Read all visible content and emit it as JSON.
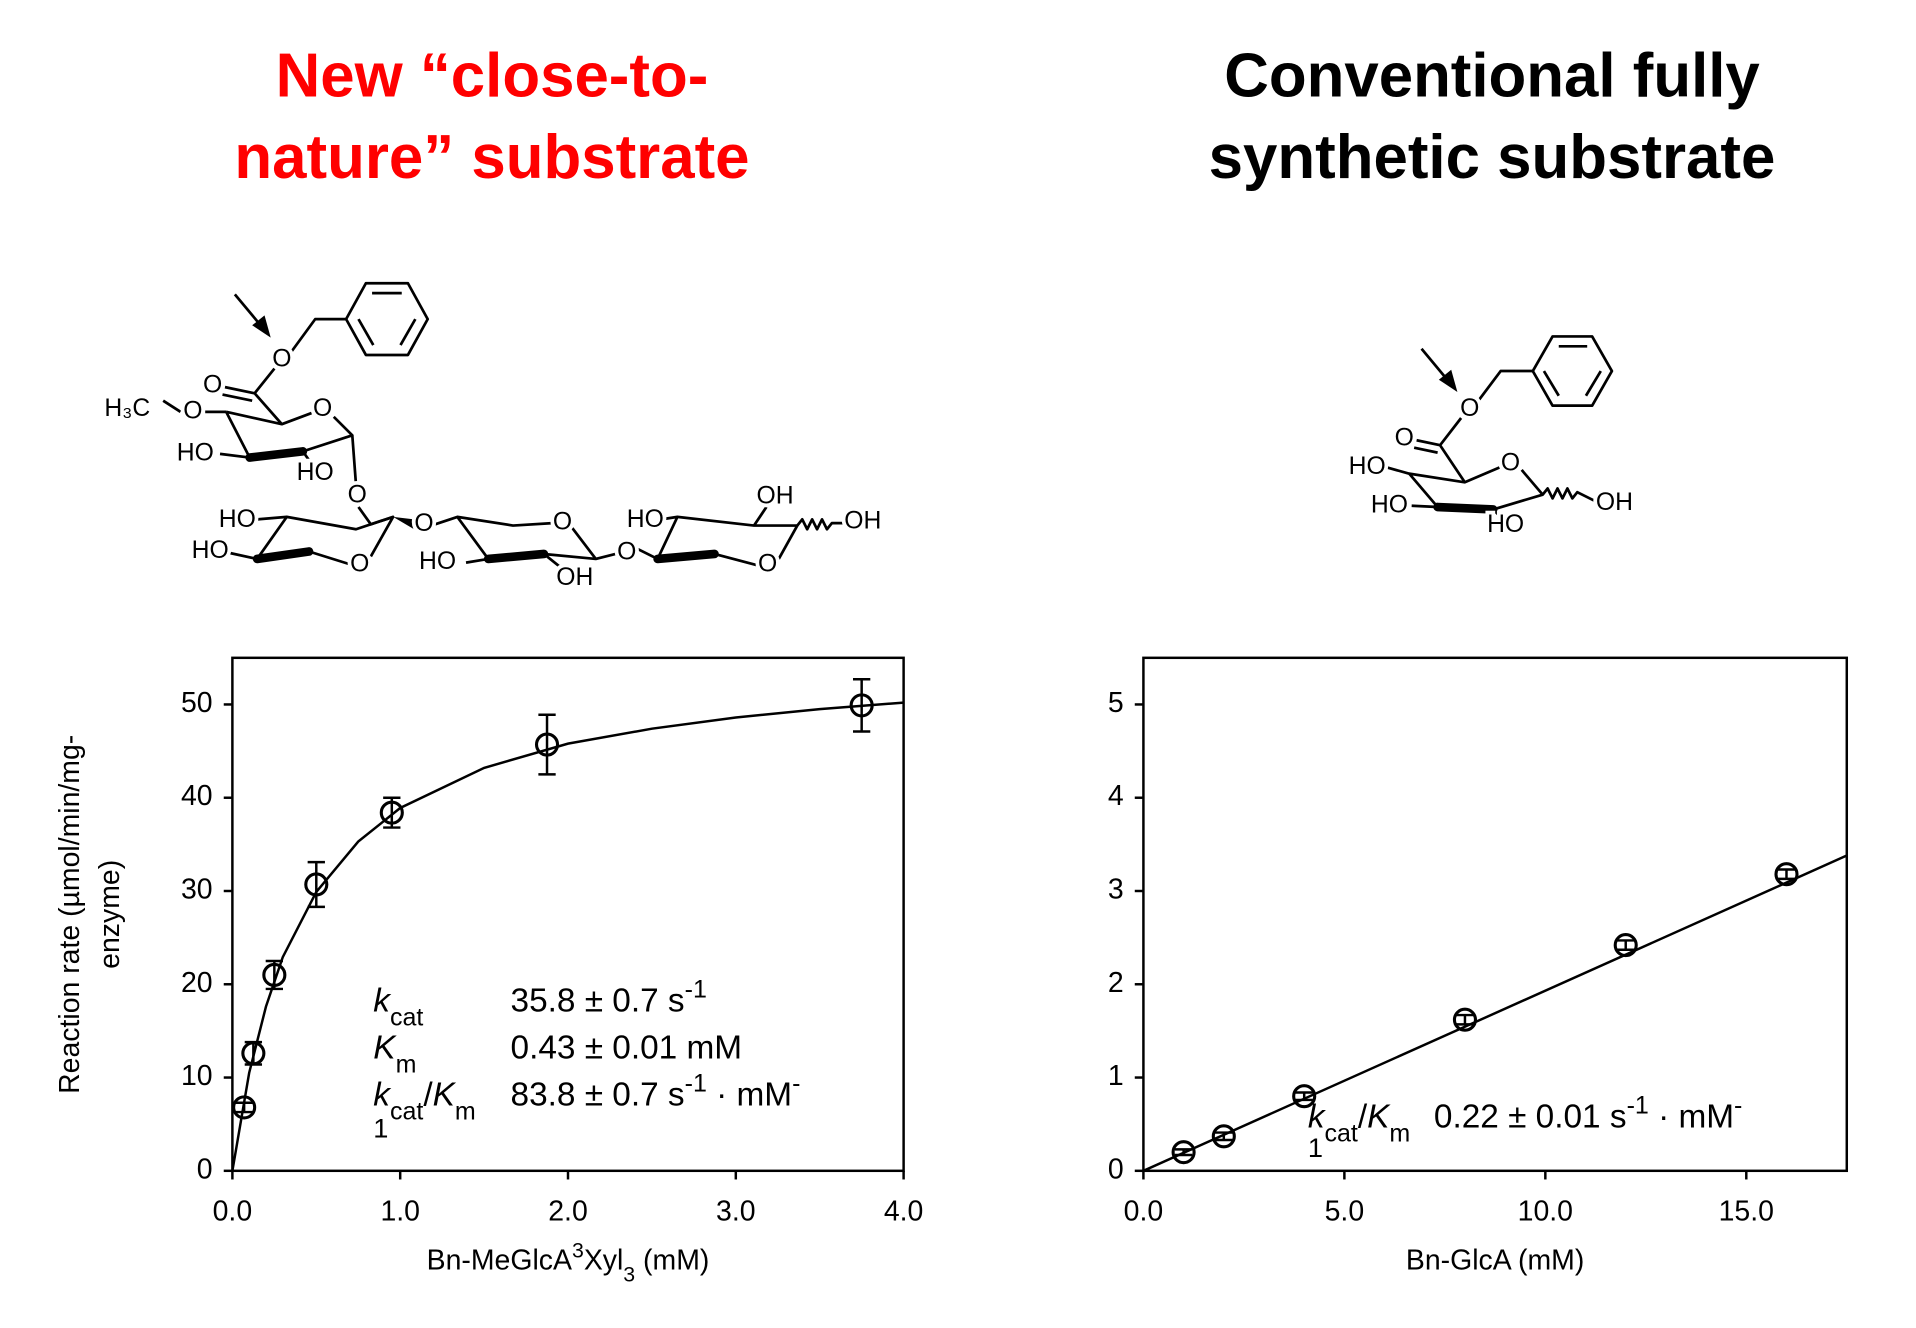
{
  "chart_data": [
    {
      "type": "scatter",
      "title": [
        "New “close-to-",
        "nature” substrate"
      ],
      "title_color": "#ff0000",
      "xlabel": [
        {
          "text": "Bn-MeGlcA",
          "format": "normal"
        },
        {
          "text": "3",
          "format": "sup"
        },
        {
          "text": "Xyl",
          "format": "normal"
        },
        {
          "text": "3",
          "format": "sub"
        },
        {
          "text": " (mM)",
          "format": "normal"
        }
      ],
      "ylabel": [
        "Reaction rate (µmol/min/mg-",
        "enzyme)"
      ],
      "x": [
        0.07,
        0.125,
        0.25,
        0.5,
        0.95,
        1.875,
        3.75
      ],
      "values": [
        6.8,
        12.6,
        21.0,
        30.7,
        38.4,
        45.7,
        49.9
      ],
      "errors": [
        0.5,
        1.2,
        1.5,
        2.4,
        1.6,
        3.2,
        2.8
      ],
      "fit_x": [
        0,
        0.1,
        0.2,
        0.3,
        0.5,
        0.75,
        1.0,
        1.5,
        2.0,
        2.5,
        3.0,
        3.5,
        4.0
      ],
      "fit_y": [
        0,
        10.5,
        17.6,
        22.9,
        29.9,
        35.3,
        38.9,
        43.2,
        45.8,
        47.4,
        48.6,
        49.5,
        50.2
      ],
      "color": "#000000",
      "xlim": [
        0,
        4.0
      ],
      "ylim": [
        0,
        55
      ],
      "xticks": [
        {
          "value": 0,
          "label": "0.0"
        },
        {
          "value": 1,
          "label": "1.0"
        },
        {
          "value": 2,
          "label": "2.0"
        },
        {
          "value": 3,
          "label": "3.0"
        },
        {
          "value": 4,
          "label": "4.0"
        }
      ],
      "yticks": [
        0,
        10,
        20,
        30,
        40,
        50
      ],
      "annotations": [
        {
          "label": [
            {
              "text": "k",
              "format": "italic"
            },
            {
              "text": "cat",
              "format": "sub"
            }
          ],
          "value": [
            {
              "text": "35.8 ± 0.7 s",
              "format": "normal"
            },
            {
              "text": "-1",
              "format": "sup"
            }
          ]
        },
        {
          "label": [
            {
              "text": "K",
              "format": "italic"
            },
            {
              "text": "m",
              "format": "sub"
            }
          ],
          "value": [
            {
              "text": "0.43 ± 0.01 mM",
              "format": "normal"
            }
          ]
        },
        {
          "label": [
            {
              "text": "k",
              "format": "italic"
            },
            {
              "text": "cat",
              "format": "sub"
            },
            {
              "text": "/",
              "format": "normal"
            },
            {
              "text": "K",
              "format": "italic"
            },
            {
              "text": "m",
              "format": "sub"
            }
          ],
          "value": [
            {
              "text": "83.8 ± 0.7 s",
              "format": "normal"
            },
            {
              "text": "-1",
              "format": "sup"
            },
            {
              "text": " · mM",
              "format": "normal"
            },
            {
              "text": "-",
              "format": "sup"
            }
          ]
        },
        {
          "label": [
            {
              "text": "1",
              "format": "normal"
            }
          ]
        }
      ]
    },
    {
      "type": "scatter",
      "title": [
        "Conventional fully",
        "synthetic substrate"
      ],
      "title_color": "#000000",
      "xlabel": [
        {
          "text": "Bn-GlcA (mM)",
          "format": "normal"
        }
      ],
      "x": [
        1,
        2,
        4,
        8,
        12,
        16
      ],
      "values": [
        0.2,
        0.37,
        0.8,
        1.62,
        2.42,
        3.18
      ],
      "errors": [
        0.03,
        0.04,
        0.04,
        0.05,
        0.05,
        0.05
      ],
      "fit_x": [
        0,
        17.5
      ],
      "fit_y": [
        0,
        3.38
      ],
      "color": "#000000",
      "xlim": [
        0,
        17.5
      ],
      "ylim": [
        0,
        5.5
      ],
      "xticks": [
        {
          "value": 0,
          "label": "0.0"
        },
        {
          "value": 5,
          "label": "5.0"
        },
        {
          "value": 10,
          "label": "10.0"
        },
        {
          "value": 15,
          "label": "15.0"
        }
      ],
      "yticks": [
        0,
        1,
        2,
        3,
        4,
        5
      ],
      "annotations": [
        {
          "label": [
            {
              "text": "k",
              "format": "italic"
            },
            {
              "text": "cat",
              "format": "sub"
            },
            {
              "text": "/",
              "format": "normal"
            },
            {
              "text": "K",
              "format": "italic"
            },
            {
              "text": "m",
              "format": "sub"
            }
          ],
          "value": [
            {
              "text": "0.22 ± 0.01 s",
              "format": "normal"
            },
            {
              "text": "-1",
              "format": "sup"
            },
            {
              "text": " · mM",
              "format": "normal"
            },
            {
              "text": "-",
              "format": "sup"
            }
          ]
        },
        {
          "label": [
            {
              "text": "1",
              "format": "normal"
            }
          ]
        }
      ]
    }
  ],
  "structures": [
    {
      "labels": [
        "O",
        "O",
        "H₃C",
        "O",
        "O",
        "HO",
        "HO",
        "O",
        "HO",
        "HO",
        "O",
        "O",
        "O",
        "HO",
        "OH",
        "O",
        "HO",
        "OH",
        "OH",
        "O"
      ]
    },
    {
      "labels": [
        "O",
        "O",
        "O",
        "HO",
        "HO",
        "HO",
        "OH"
      ]
    }
  ]
}
